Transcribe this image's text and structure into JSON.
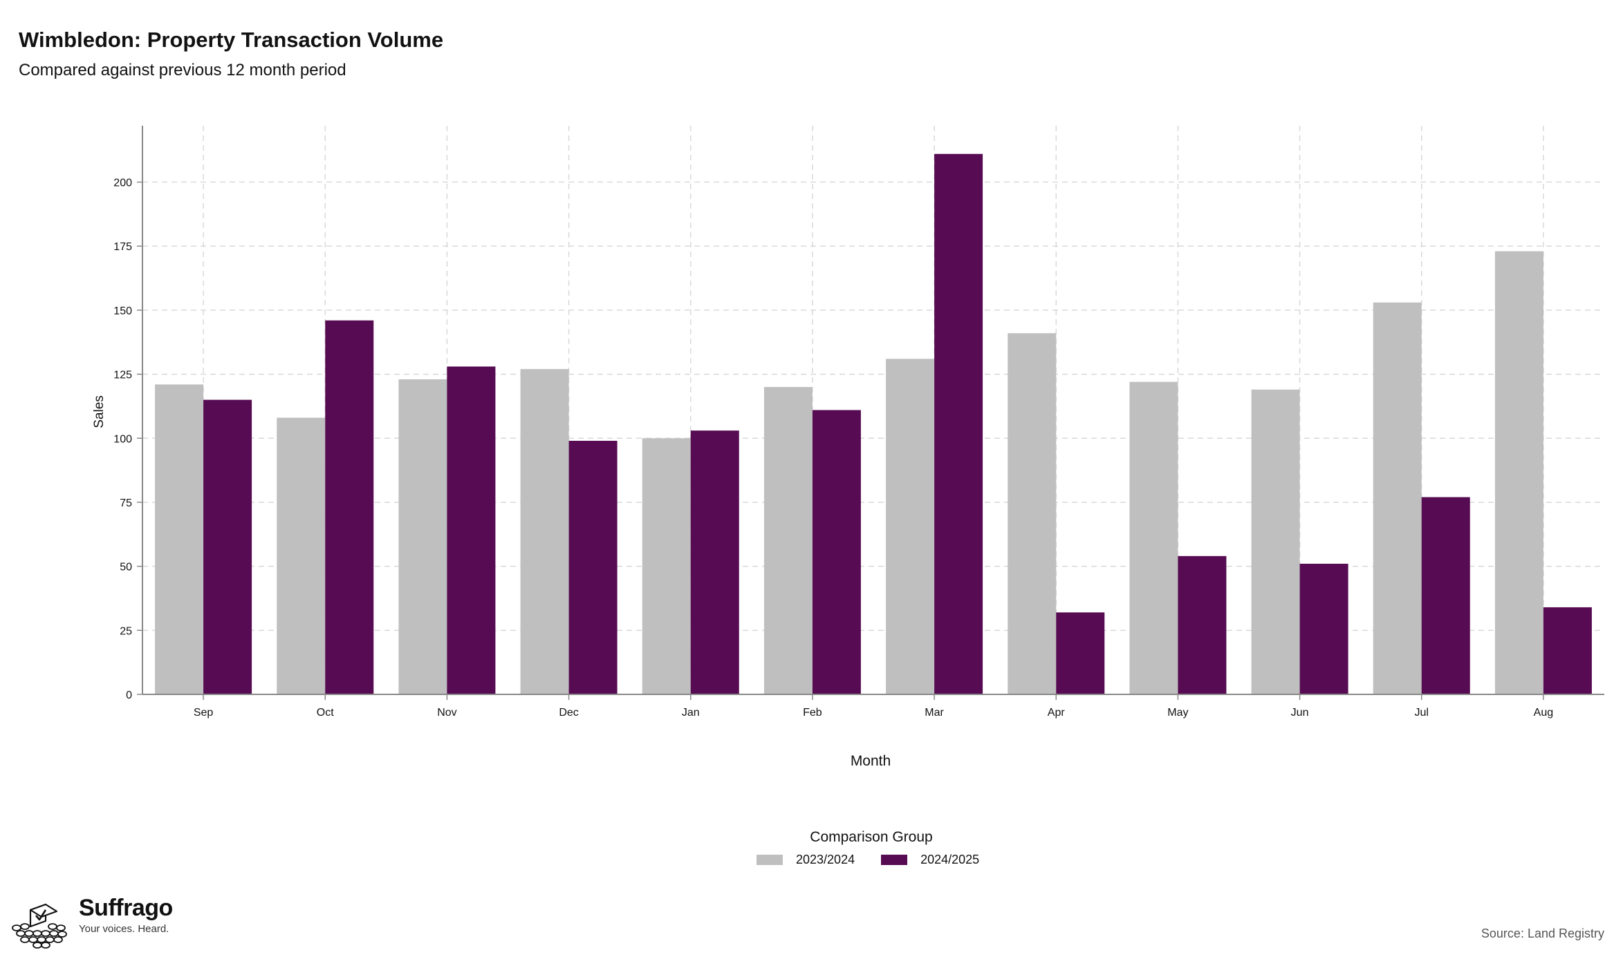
{
  "header": {
    "title": "Wimbledon: Property Transaction Volume",
    "subtitle": "Compared against previous 12 month period"
  },
  "chart_data": {
    "type": "bar",
    "title": "Wimbledon: Property Transaction Volume",
    "subtitle": "Compared against previous 12 month period",
    "xlabel": "Month",
    "ylabel": "Sales",
    "categories": [
      "Sep",
      "Oct",
      "Nov",
      "Dec",
      "Jan",
      "Feb",
      "Mar",
      "Apr",
      "May",
      "Jun",
      "Jul",
      "Aug"
    ],
    "series": [
      {
        "name": "2023/2024",
        "color": "#bfbfbf",
        "values": [
          121,
          108,
          123,
          127,
          100,
          120,
          131,
          141,
          122,
          119,
          153,
          173
        ]
      },
      {
        "name": "2024/2025",
        "color": "#560b52",
        "values": [
          115,
          146,
          128,
          99,
          103,
          111,
          211,
          32,
          54,
          51,
          77,
          34
        ]
      }
    ],
    "ylim": [
      0,
      222
    ],
    "yticks": [
      0,
      25,
      50,
      75,
      100,
      125,
      150,
      175,
      200
    ],
    "grid": true,
    "legend": {
      "title": "Comparison Group",
      "position": "bottom"
    }
  },
  "legend": {
    "title": "Comparison Group",
    "items": [
      {
        "label": "2023/2024",
        "color": "#bfbfbf"
      },
      {
        "label": "2024/2025",
        "color": "#560b52"
      }
    ]
  },
  "footer": {
    "logo_name": "Suffrago",
    "logo_tagline": "Your voices. Heard.",
    "source": "Source: Land Registry"
  }
}
